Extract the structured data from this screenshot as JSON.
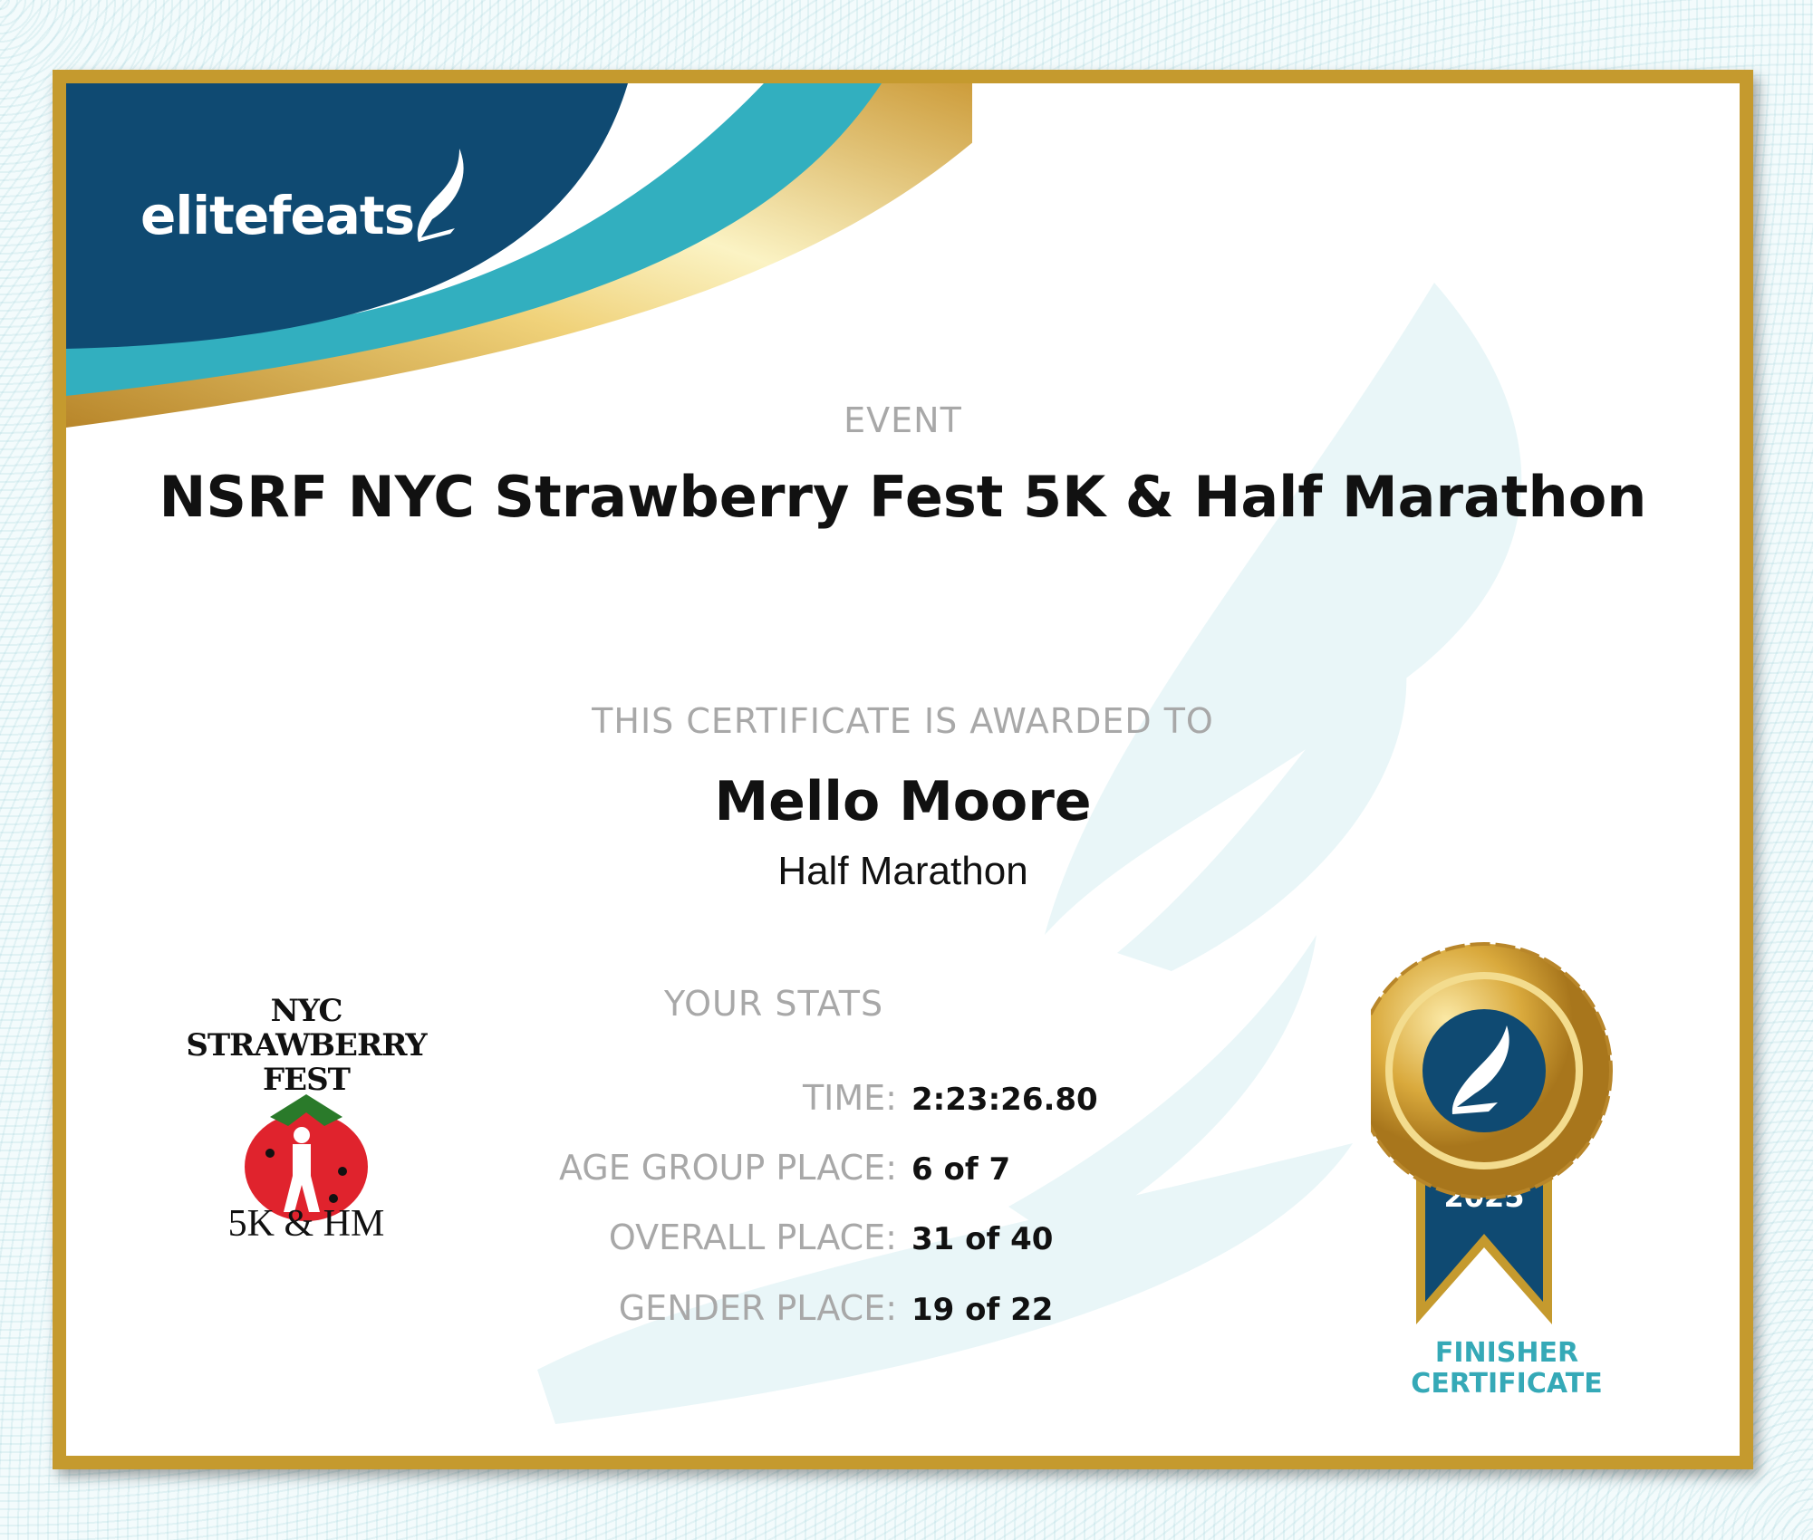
{
  "brand": {
    "logo_text": "elitefeats",
    "colors": {
      "navy": "#0f4a72",
      "teal": "#32afbf",
      "gold": "#c59a2e"
    }
  },
  "event": {
    "label": "EVENT",
    "name": "NSRF NYC Strawberry Fest 5K & Half Marathon"
  },
  "award": {
    "label": "THIS CERTIFICATE IS AWARDED TO",
    "name": "Mello Moore",
    "race": "Half Marathon"
  },
  "stats": {
    "label": "YOUR STATS",
    "rows": [
      {
        "key": "TIME:",
        "value": "2:23:26.80"
      },
      {
        "key": "AGE GROUP PLACE:",
        "value": "6 of 7"
      },
      {
        "key": "OVERALL PLACE:",
        "value": "31 of 40"
      },
      {
        "key": "GENDER PLACE:",
        "value": "19 of 22"
      }
    ]
  },
  "event_logo": {
    "line1": "NYC",
    "line2": "STRAWBERRY",
    "line3": "FEST",
    "line4": "5K & HM"
  },
  "medal": {
    "year": "2025",
    "line1": "FINISHER",
    "line2": "CERTIFICATE",
    "icon": "winged-shoe-icon"
  }
}
